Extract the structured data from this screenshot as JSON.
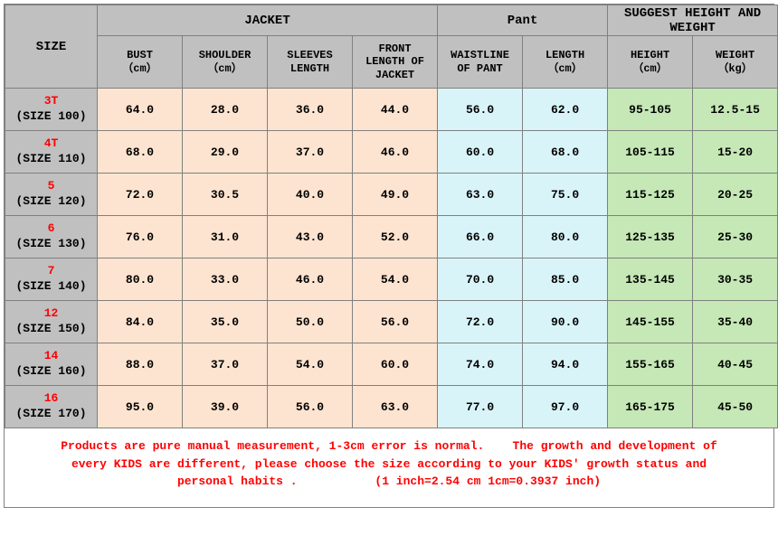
{
  "colors": {
    "gray": "#c0c0c0",
    "jacket": "#fde4d0",
    "pant": "#d9f4f9",
    "hw": "#c5e8b6",
    "border": "#808080",
    "red": "#ff0000"
  },
  "header": {
    "size": "SIZE",
    "jacket": "JACKET",
    "pant": "Pant",
    "suggest_top": "SUGGEST HEIGHT AND",
    "suggest_bot": "WEIGHT",
    "bust": "BUST",
    "bust_u": "（cm）",
    "shoulder": "SHOULDER",
    "shoulder_u": "（cm）",
    "sleeves1": "SLEEVES",
    "sleeves2": "LENGTH",
    "front1": "FRONT",
    "front2": "LENGTH OF",
    "front3": "JACKET",
    "waist1": "WAISTLINE",
    "waist2": "OF PANT",
    "length": "LENGTH",
    "length_u": "（cm）",
    "height": "HEIGHT",
    "height_u": "（cm）",
    "weight": "WEIGHT",
    "weight_u": "（kg）"
  },
  "rows": [
    {
      "size_top": "3T",
      "size_bot": "(SIZE 100)",
      "bust": "64.0",
      "shoulder": "28.0",
      "sleeves": "36.0",
      "front": "44.0",
      "waist": "56.0",
      "length": "62.0",
      "height": "95-105",
      "weight": "12.5-15"
    },
    {
      "size_top": "4T",
      "size_bot": "(SIZE 110)",
      "bust": "68.0",
      "shoulder": "29.0",
      "sleeves": "37.0",
      "front": "46.0",
      "waist": "60.0",
      "length": "68.0",
      "height": "105-115",
      "weight": "15-20"
    },
    {
      "size_top": "5",
      "size_bot": "(SIZE 120)",
      "bust": "72.0",
      "shoulder": "30.5",
      "sleeves": "40.0",
      "front": "49.0",
      "waist": "63.0",
      "length": "75.0",
      "height": "115-125",
      "weight": "20-25"
    },
    {
      "size_top": "6",
      "size_bot": "(SIZE 130)",
      "bust": "76.0",
      "shoulder": "31.0",
      "sleeves": "43.0",
      "front": "52.0",
      "waist": "66.0",
      "length": "80.0",
      "height": "125-135",
      "weight": "25-30"
    },
    {
      "size_top": "7",
      "size_bot": "(SIZE 140)",
      "bust": "80.0",
      "shoulder": "33.0",
      "sleeves": "46.0",
      "front": "54.0",
      "waist": "70.0",
      "length": "85.0",
      "height": "135-145",
      "weight": "30-35"
    },
    {
      "size_top": "12",
      "size_bot": "(SIZE 150)",
      "bust": "84.0",
      "shoulder": "35.0",
      "sleeves": "50.0",
      "front": "56.0",
      "waist": "72.0",
      "length": "90.0",
      "height": "145-155",
      "weight": "35-40"
    },
    {
      "size_top": "14",
      "size_bot": "(SIZE 160)",
      "bust": "88.0",
      "shoulder": "37.0",
      "sleeves": "54.0",
      "front": "60.0",
      "waist": "74.0",
      "length": "94.0",
      "height": "155-165",
      "weight": "40-45"
    },
    {
      "size_top": "16",
      "size_bot": "(SIZE 170)",
      "bust": "95.0",
      "shoulder": "39.0",
      "sleeves": "56.0",
      "front": "63.0",
      "waist": "77.0",
      "length": "97.0",
      "height": "165-175",
      "weight": "45-50"
    }
  ],
  "note": {
    "line1a": "Products are pure manual measurement,  1-3cm error is normal.",
    "line1b": "The growth and development of",
    "line2": "every KIDS are different, please choose the size according to  your KIDS' growth status and",
    "line3a": "personal habits .",
    "line3b": "(1 inch=2.54 cm    1cm=0.3937 inch)"
  }
}
